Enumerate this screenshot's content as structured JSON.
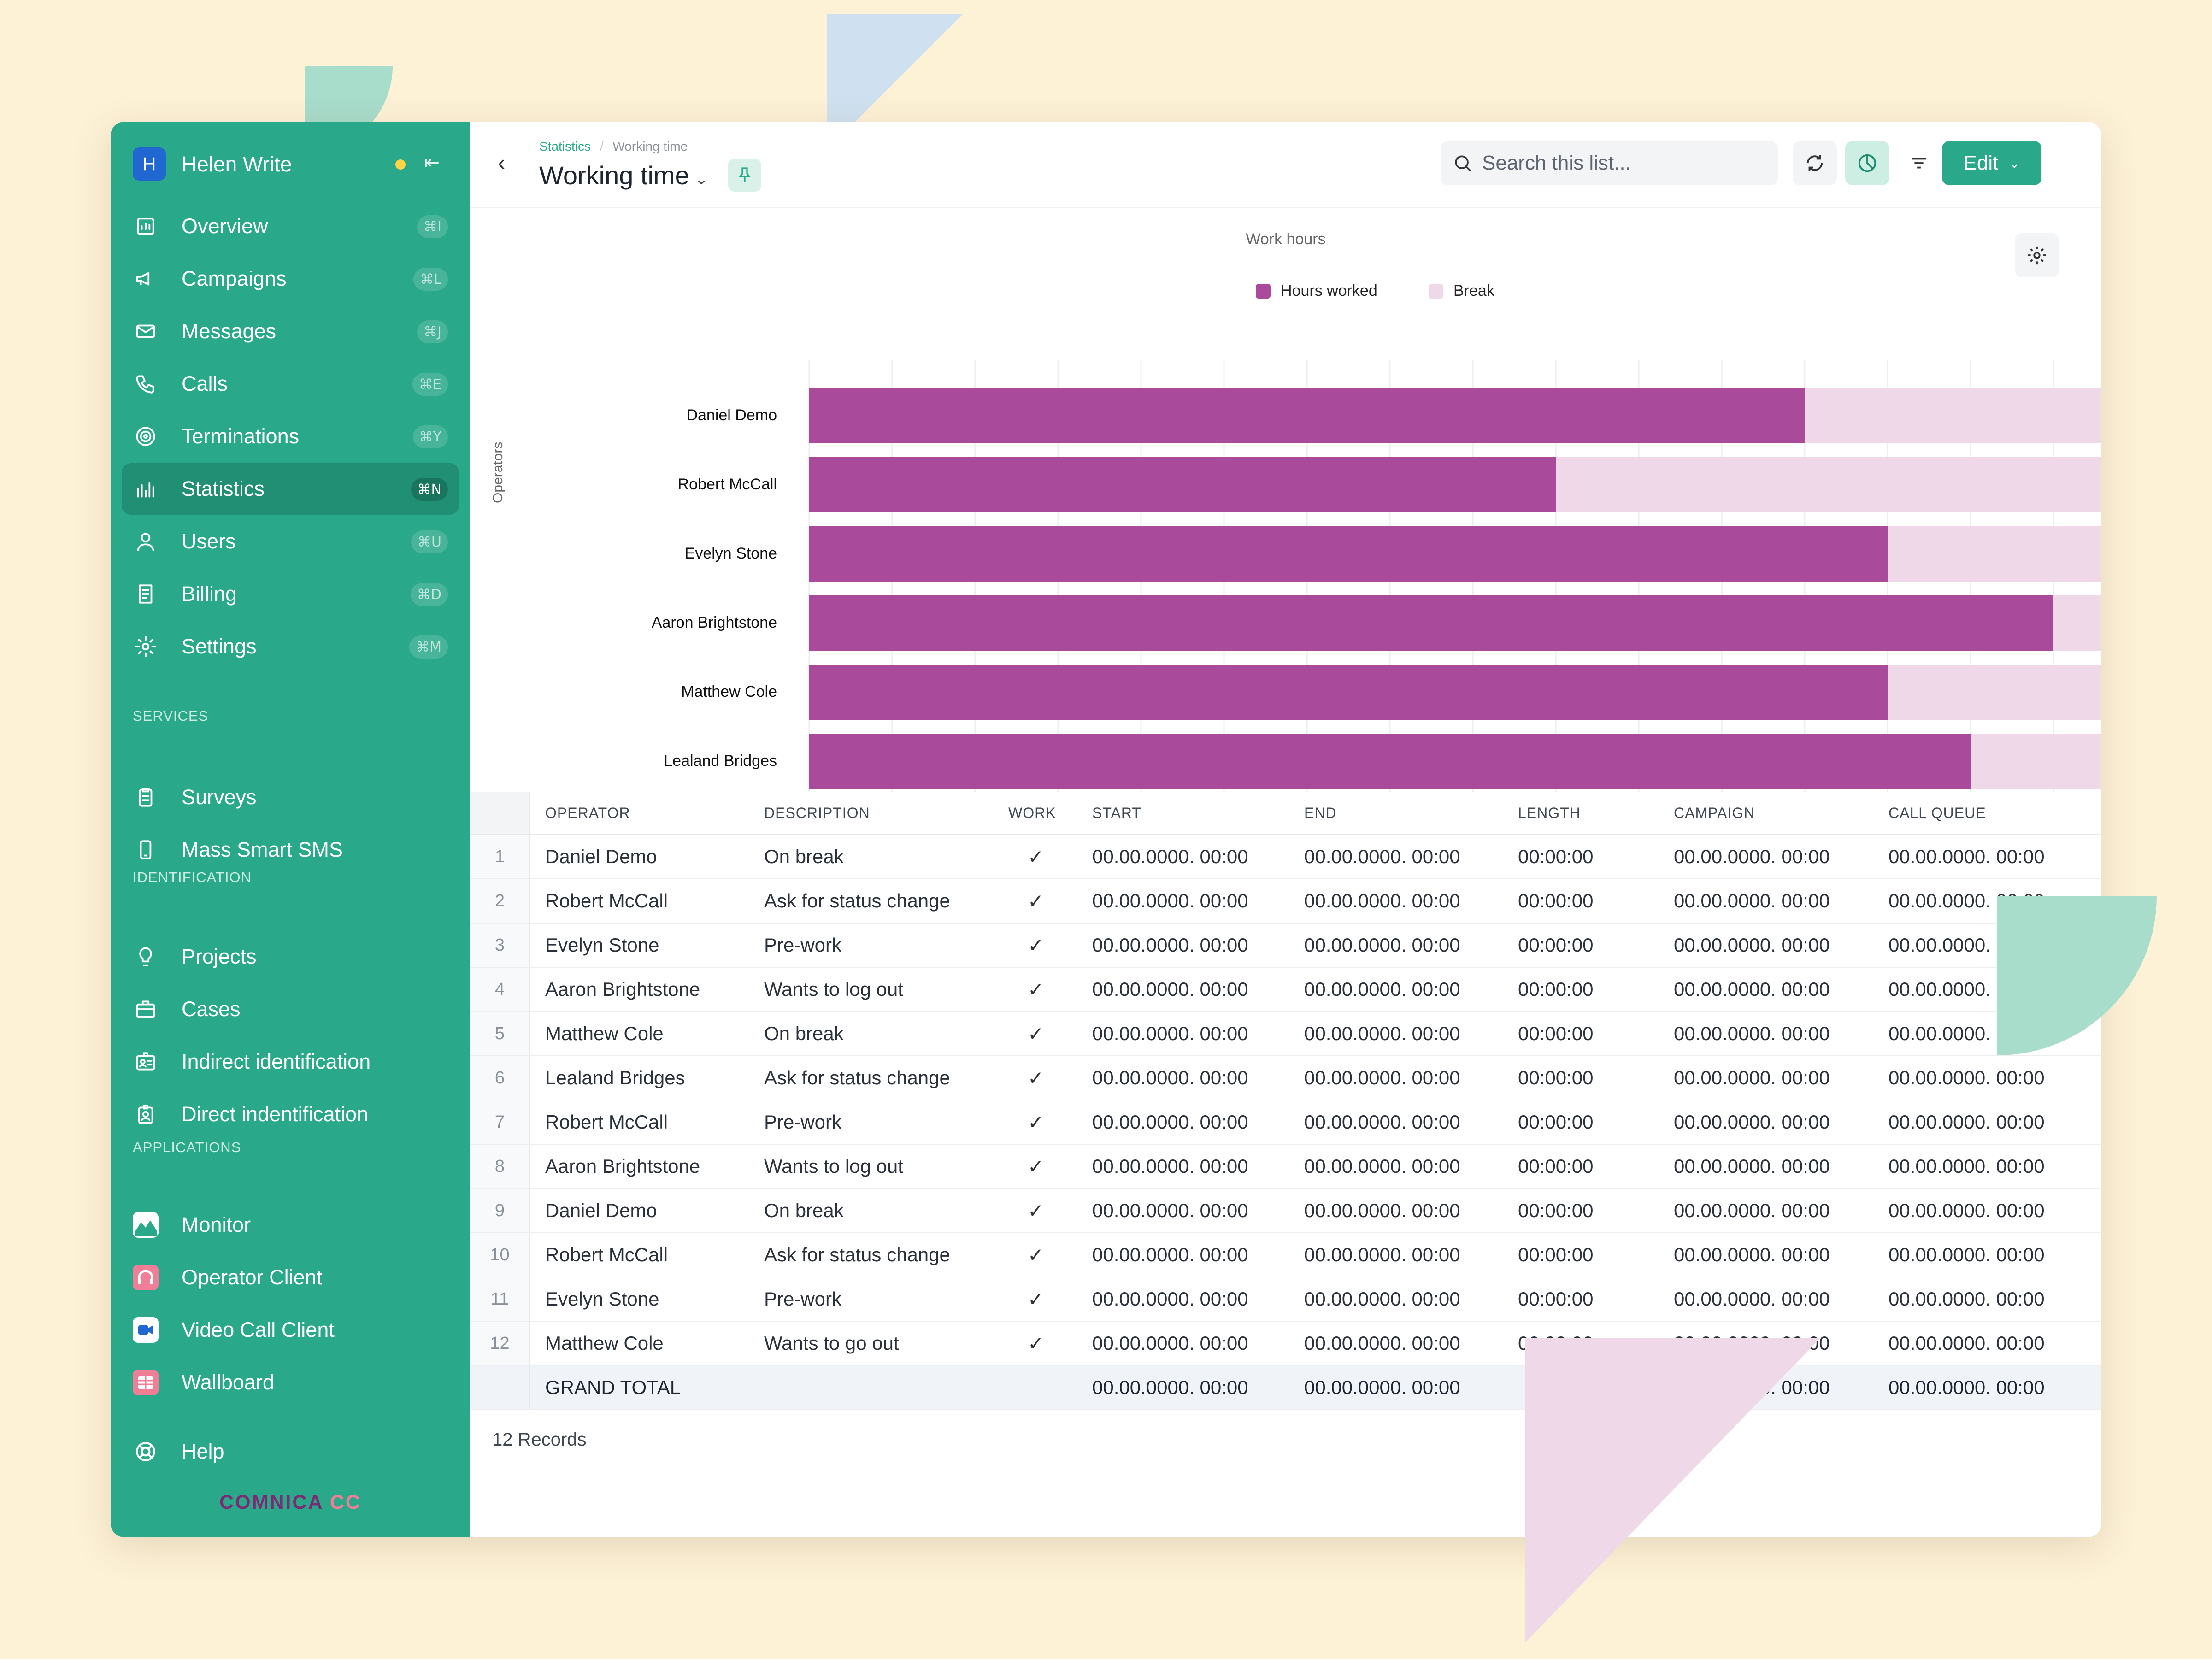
{
  "colors": {
    "accent": "#2aa98a",
    "hours": "#aa4a9a",
    "break": "#efd9e9"
  },
  "user": {
    "initial": "H",
    "name": "Helen Write"
  },
  "nav": [
    {
      "label": "Overview",
      "shortcut": "⌘I",
      "icon": "overview-icon"
    },
    {
      "label": "Campaigns",
      "shortcut": "⌘L",
      "icon": "megaphone-icon"
    },
    {
      "label": "Messages",
      "shortcut": "⌘J",
      "icon": "envelope-icon"
    },
    {
      "label": "Calls",
      "shortcut": "⌘E",
      "icon": "phone-icon"
    },
    {
      "label": "Terminations",
      "shortcut": "⌘Y",
      "icon": "target-icon"
    },
    {
      "label": "Statistics",
      "shortcut": "⌘N",
      "icon": "bar-chart-icon",
      "active": true
    },
    {
      "label": "Users",
      "shortcut": "⌘U",
      "icon": "user-icon"
    },
    {
      "label": "Billing",
      "shortcut": "⌘D",
      "icon": "receipt-icon"
    },
    {
      "label": "Settings",
      "shortcut": "⌘M",
      "icon": "gear-icon"
    }
  ],
  "sections": {
    "services": "SERVICES",
    "identification": "IDENTIFICATION",
    "applications": "APPLICATIONS"
  },
  "services": [
    {
      "label": "Surveys",
      "icon": "clipboard-icon"
    },
    {
      "label": "Mass Smart SMS",
      "icon": "mobile-icon"
    }
  ],
  "identification": [
    {
      "label": "Projects",
      "icon": "lightbulb-icon"
    },
    {
      "label": "Cases",
      "icon": "briefcase-icon"
    },
    {
      "label": "Indirect identification",
      "icon": "id-card-icon"
    },
    {
      "label": "Direct indentification",
      "icon": "id-badge-icon"
    }
  ],
  "applications": [
    {
      "label": "Monitor",
      "icon": "monitor-app-icon"
    },
    {
      "label": "Operator Client",
      "icon": "headset-app-icon"
    },
    {
      "label": "Video Call Client",
      "icon": "video-app-icon"
    },
    {
      "label": "Wallboard",
      "icon": "wallboard-app-icon"
    }
  ],
  "help": "Help",
  "brand": {
    "a": "COMNICA",
    "b": "CC"
  },
  "header": {
    "breadcrumb": [
      "Statistics",
      "Working time"
    ],
    "title": "Working time",
    "search_placeholder": "Search this list...",
    "edit": "Edit"
  },
  "chart_data": {
    "type": "bar",
    "orientation": "horizontal",
    "stacked": true,
    "title": "Work hours",
    "ylabel": "Operators",
    "categories": [
      "Daniel Demo",
      "Robert McCall",
      "Evelyn Stone",
      "Aaron Brightstone",
      "Matthew Cole",
      "Lealand Bridges"
    ],
    "series": [
      {
        "name": "Hours worked",
        "values": [
          12,
          9,
          13,
          15,
          13,
          14
        ]
      },
      {
        "name": "Break",
        "values": [
          4,
          7,
          3,
          1,
          3,
          2
        ]
      }
    ],
    "xlim": [
      0,
      16
    ],
    "grid": true,
    "legend": "top-center"
  },
  "table": {
    "columns": [
      "OPERATOR",
      "DESCRIPTION",
      "WORK",
      "START",
      "END",
      "LENGTH",
      "CAMPAIGN",
      "CALL QUEUE"
    ],
    "rows": [
      [
        "1",
        "Daniel Demo",
        "On break",
        "✓",
        "00.00.0000. 00:00",
        "00.00.0000. 00:00",
        "00:00:00",
        "00.00.0000. 00:00",
        "00.00.0000. 00:00"
      ],
      [
        "2",
        "Robert McCall",
        "Ask for status change",
        "✓",
        "00.00.0000. 00:00",
        "00.00.0000. 00:00",
        "00:00:00",
        "00.00.0000. 00:00",
        "00.00.0000. 00:00"
      ],
      [
        "3",
        "Evelyn Stone",
        "Pre-work",
        "✓",
        "00.00.0000. 00:00",
        "00.00.0000. 00:00",
        "00:00:00",
        "00.00.0000. 00:00",
        "00.00.0000. 00:00"
      ],
      [
        "4",
        "Aaron Brightstone",
        "Wants to log out",
        "✓",
        "00.00.0000. 00:00",
        "00.00.0000. 00:00",
        "00:00:00",
        "00.00.0000. 00:00",
        "00.00.0000. 00:00"
      ],
      [
        "5",
        "Matthew Cole",
        "On break",
        "✓",
        "00.00.0000. 00:00",
        "00.00.0000. 00:00",
        "00:00:00",
        "00.00.0000. 00:00",
        "00.00.0000. 00:00"
      ],
      [
        "6",
        "Lealand Bridges",
        "Ask for status change",
        "✓",
        "00.00.0000. 00:00",
        "00.00.0000. 00:00",
        "00:00:00",
        "00.00.0000. 00:00",
        "00.00.0000. 00:00"
      ],
      [
        "7",
        "Robert McCall",
        "Pre-work",
        "✓",
        "00.00.0000. 00:00",
        "00.00.0000. 00:00",
        "00:00:00",
        "00.00.0000. 00:00",
        "00.00.0000. 00:00"
      ],
      [
        "8",
        "Aaron Brightstone",
        "Wants to log out",
        "✓",
        "00.00.0000. 00:00",
        "00.00.0000. 00:00",
        "00:00:00",
        "00.00.0000. 00:00",
        "00.00.0000. 00:00"
      ],
      [
        "9",
        "Daniel Demo",
        "On break",
        "✓",
        "00.00.0000. 00:00",
        "00.00.0000. 00:00",
        "00:00:00",
        "00.00.0000. 00:00",
        "00.00.0000. 00:00"
      ],
      [
        "10",
        "Robert McCall",
        "Ask for status change",
        "✓",
        "00.00.0000. 00:00",
        "00.00.0000. 00:00",
        "00:00:00",
        "00.00.0000. 00:00",
        "00.00.0000. 00:00"
      ],
      [
        "11",
        "Evelyn Stone",
        "Pre-work",
        "✓",
        "00.00.0000. 00:00",
        "00.00.0000. 00:00",
        "00:00:00",
        "00.00.0000. 00:00",
        "00.00.0000. 00:00"
      ],
      [
        "12",
        "Matthew Cole",
        "Wants to go out",
        "✓",
        "00.00.0000. 00:00",
        "00.00.0000. 00:00",
        "00:00:00",
        "00.00.0000. 00:00",
        "00.00.0000. 00:00"
      ]
    ],
    "total": {
      "label": "GRAND TOTAL",
      "start": "00.00.0000. 00:00",
      "end": "00.00.0000. 00:00",
      "campaign": "00.00.0000. 00:00",
      "queue": "00.00.0000. 00:00"
    },
    "records": "12 Records"
  }
}
